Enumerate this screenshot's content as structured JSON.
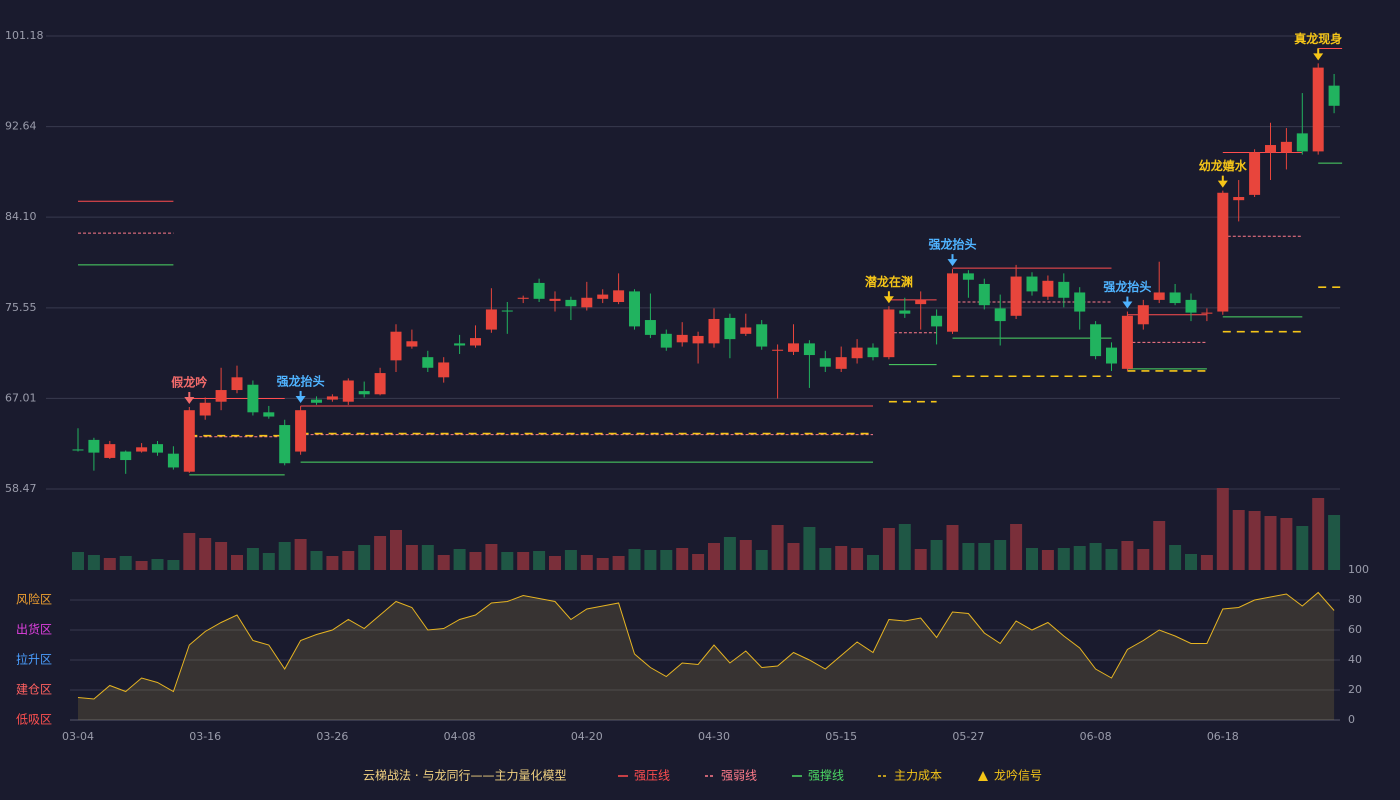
{
  "chart_data": {
    "type": "candlestick",
    "categories": [
      "03-04",
      null,
      null,
      null,
      null,
      null,
      null,
      null,
      "03-16",
      null,
      null,
      null,
      null,
      null,
      null,
      null,
      "03-26",
      null,
      null,
      null,
      null,
      null,
      null,
      null,
      "04-08",
      null,
      null,
      null,
      null,
      null,
      null,
      null,
      "04-20",
      null,
      null,
      null,
      null,
      null,
      null,
      null,
      "04-30",
      null,
      null,
      null,
      null,
      null,
      null,
      null,
      "05-15",
      null,
      null,
      null,
      null,
      null,
      null,
      null,
      "05-27",
      null,
      null,
      null,
      null,
      null,
      null,
      null,
      "06-08",
      null,
      null,
      null,
      null,
      null,
      null,
      null,
      "06-18",
      null,
      null,
      null,
      null,
      null,
      null,
      null
    ],
    "open": [
      62.2,
      63.1,
      61.4,
      62.0,
      62.0,
      62.7,
      61.8,
      60.1,
      65.4,
      66.7,
      67.8,
      68.3,
      65.7,
      64.5,
      62.0,
      66.9,
      66.9,
      66.7,
      67.7,
      67.4,
      70.6,
      71.9,
      70.9,
      69.0,
      72.2,
      72.0,
      73.5,
      75.3,
      76.4,
      77.9,
      76.2,
      76.3,
      75.6,
      76.4,
      76.1,
      77.1,
      74.4,
      73.1,
      72.3,
      72.2,
      72.2,
      74.6,
      73.1,
      74.0,
      71.5,
      71.4,
      72.2,
      70.8,
      69.8,
      70.8,
      71.8,
      70.9,
      75.3,
      75.9,
      74.8,
      73.3,
      78.8,
      77.8,
      75.5,
      74.8,
      78.5,
      76.6,
      78.0,
      77.0,
      74.0,
      71.8,
      69.8,
      74.0,
      76.3,
      77.0,
      76.3,
      75.0,
      75.2,
      85.7,
      86.2,
      90.2,
      90.2,
      92.0,
      90.3,
      96.5
    ],
    "high": [
      64.2,
      63.3,
      63.0,
      62.1,
      62.8,
      63.0,
      62.5,
      66.2,
      67.1,
      69.9,
      70.1,
      68.7,
      66.3,
      65.0,
      66.3,
      67.2,
      67.4,
      68.9,
      68.6,
      69.9,
      74.0,
      73.5,
      71.5,
      70.9,
      73.0,
      73.9,
      77.4,
      76.1,
      76.7,
      78.3,
      77.1,
      76.6,
      78.0,
      77.3,
      78.8,
      77.3,
      76.9,
      73.5,
      74.2,
      73.3,
      75.5,
      75.0,
      75.0,
      74.4,
      72.1,
      74.0,
      72.5,
      71.5,
      71.9,
      72.6,
      72.2,
      75.7,
      76.5,
      77.1,
      75.4,
      79.2,
      79.1,
      78.3,
      76.8,
      79.6,
      78.9,
      78.6,
      78.8,
      77.5,
      74.3,
      72.3,
      75.2,
      76.3,
      79.9,
      77.8,
      76.9,
      75.5,
      86.6,
      87.6,
      90.5,
      93.0,
      92.5,
      95.8,
      98.6,
      97.6
    ],
    "low": [
      62.0,
      60.2,
      61.3,
      59.9,
      61.9,
      61.6,
      60.3,
      60.0,
      65.0,
      65.9,
      67.5,
      65.4,
      65.1,
      60.7,
      61.7,
      66.4,
      66.7,
      66.4,
      67.1,
      67.3,
      69.5,
      71.7,
      69.5,
      68.5,
      71.2,
      71.8,
      73.2,
      73.1,
      76.0,
      76.1,
      75.2,
      74.4,
      75.3,
      76.0,
      75.9,
      73.5,
      72.7,
      71.5,
      71.9,
      70.3,
      71.8,
      70.8,
      72.9,
      71.6,
      67.0,
      71.1,
      68.0,
      69.5,
      69.5,
      70.3,
      70.6,
      70.7,
      74.6,
      73.5,
      72.1,
      73.1,
      76.5,
      75.4,
      72.0,
      74.5,
      76.7,
      76.3,
      75.6,
      73.5,
      70.7,
      69.6,
      69.6,
      73.5,
      76.0,
      75.8,
      74.3,
      74.3,
      74.9,
      83.7,
      86.0,
      87.6,
      88.6,
      90.0,
      90.0,
      93.9
    ],
    "close": [
      62.1,
      61.9,
      62.7,
      61.2,
      62.4,
      61.9,
      60.5,
      65.9,
      66.6,
      67.8,
      69.0,
      65.7,
      65.3,
      60.9,
      65.9,
      66.6,
      67.2,
      68.7,
      67.4,
      69.4,
      73.3,
      72.4,
      69.9,
      70.4,
      72.0,
      72.7,
      75.4,
      75.2,
      76.5,
      76.4,
      76.4,
      75.7,
      76.5,
      76.8,
      77.2,
      73.8,
      73.0,
      71.8,
      73.0,
      72.9,
      74.5,
      72.6,
      73.7,
      71.9,
      71.6,
      72.2,
      71.1,
      70.0,
      70.9,
      71.8,
      70.9,
      75.4,
      75.0,
      76.3,
      73.8,
      78.8,
      78.2,
      75.8,
      74.3,
      78.5,
      77.1,
      78.1,
      76.5,
      75.2,
      71.0,
      70.3,
      74.8,
      75.8,
      77.0,
      76.0,
      75.1,
      75.1,
      86.4,
      86.0,
      90.2,
      90.9,
      91.2,
      90.3,
      98.2,
      94.6
    ],
    "volume": [
      18,
      15,
      12,
      14,
      9,
      11,
      10,
      37,
      32,
      28,
      15,
      22,
      17,
      28,
      31,
      19,
      14,
      19,
      25,
      34,
      40,
      25,
      25,
      15,
      21,
      18,
      26,
      18,
      18,
      19,
      14,
      20,
      15,
      12,
      14,
      21,
      20,
      20,
      22,
      16,
      27,
      33,
      30,
      20,
      45,
      27,
      43,
      22,
      24,
      22,
      15,
      42,
      46,
      21,
      30,
      45,
      27,
      27,
      30,
      46,
      22,
      20,
      22,
      24,
      27,
      21,
      29,
      21,
      49,
      25,
      16,
      15,
      82,
      60,
      59,
      54,
      52,
      44,
      72,
      55
    ],
    "up_color": "#e8453c",
    "down_color": "#21b35f",
    "volume_up_color": "#7a2f3a",
    "volume_down_color": "#1f5745",
    "grid_color": "#383a4e",
    "ylim": [
      58.47,
      101.18
    ],
    "yticks": [
      58.47,
      67.01,
      75.55,
      {
        "value": 84.1,
        "label": "84.10"
      },
      92.64,
      101.18
    ],
    "level_lines": [
      {
        "name": "强压线",
        "color": "#ff4d4f",
        "style": "solid",
        "segments": [
          {
            "from": 0,
            "to": 6,
            "value": 85.6
          },
          {
            "from": 7,
            "to": 13,
            "value": 67.0
          },
          {
            "from": 14,
            "to": 50,
            "value": 66.3
          },
          {
            "from": 51,
            "to": 54,
            "value": 76.3
          },
          {
            "from": 55,
            "to": 65,
            "value": 79.3
          },
          {
            "from": 66,
            "to": 71,
            "value": 74.9
          },
          {
            "from": 72,
            "to": 77,
            "value": 90.2
          },
          {
            "from": 78,
            "to": 79,
            "value": 100.0
          }
        ]
      },
      {
        "name": "强弱线",
        "color": "#ff7b8a",
        "style": "dashed",
        "segments": [
          {
            "from": 0,
            "to": 6,
            "value": 82.6
          },
          {
            "from": 7,
            "to": 13,
            "value": 63.4
          },
          {
            "from": 14,
            "to": 50,
            "value": 63.6
          },
          {
            "from": 51,
            "to": 54,
            "value": 73.2
          },
          {
            "from": 55,
            "to": 65,
            "value": 76.1
          },
          {
            "from": 66,
            "to": 71,
            "value": 72.3
          },
          {
            "from": 72,
            "to": 77,
            "value": 82.3
          }
        ]
      },
      {
        "name": "强撑线",
        "color": "#4cd964",
        "style": "solid",
        "segments": [
          {
            "from": 0,
            "to": 6,
            "value": 79.6
          },
          {
            "from": 7,
            "to": 13,
            "value": 59.8
          },
          {
            "from": 14,
            "to": 50,
            "value": 61.0
          },
          {
            "from": 51,
            "to": 54,
            "value": 70.2
          },
          {
            "from": 55,
            "to": 65,
            "value": 72.7
          },
          {
            "from": 66,
            "to": 71,
            "value": 69.8
          },
          {
            "from": 72,
            "to": 77,
            "value": 74.7
          },
          {
            "from": 78,
            "to": 79,
            "value": 89.2
          }
        ]
      },
      {
        "name": "主力成本",
        "color": "#f5c518",
        "style": "dashed",
        "segments": [
          {
            "from": 7,
            "to": 13,
            "value": 63.5
          },
          {
            "from": 14,
            "to": 50,
            "value": 63.7
          },
          {
            "from": 51,
            "to": 54,
            "value": 66.7
          },
          {
            "from": 55,
            "to": 65,
            "value": 69.1
          },
          {
            "from": 66,
            "to": 71,
            "value": 69.6
          },
          {
            "from": 72,
            "to": 77,
            "value": 73.3
          },
          {
            "from": 78,
            "to": 79,
            "value": 77.5
          }
        ]
      }
    ],
    "signals": [
      {
        "index": 7,
        "label": "假龙吟",
        "color": "#f26b6b"
      },
      {
        "index": 14,
        "label": "强龙抬头",
        "color": "#4fb3ff"
      },
      {
        "index": 51,
        "label": "潜龙在渊",
        "color": "#f5c518"
      },
      {
        "index": 55,
        "label": "强龙抬头",
        "color": "#4fb3ff"
      },
      {
        "index": 66,
        "label": "强龙抬头",
        "color": "#4fb3ff"
      },
      {
        "index": 72,
        "label": "幼龙嬉水",
        "color": "#f5c518"
      },
      {
        "index": 78,
        "label": "真龙现身",
        "color": "#f5c518"
      }
    ],
    "oscillator": {
      "values": [
        15,
        14,
        23,
        19,
        28,
        25,
        19,
        50,
        59,
        65,
        70,
        53,
        50,
        34,
        53,
        57,
        60,
        67,
        61,
        70,
        79,
        75,
        60,
        61,
        67,
        70,
        78,
        79,
        83,
        81,
        79,
        67,
        74,
        76,
        78,
        44,
        35,
        29,
        38,
        37,
        50,
        38,
        46,
        35,
        36,
        45,
        40,
        34,
        43,
        52,
        45,
        67,
        66,
        68,
        55,
        72,
        71,
        58,
        51,
        66,
        60,
        65,
        56,
        48,
        34,
        28,
        47,
        53,
        60,
        56,
        51,
        51,
        74,
        75,
        80,
        82,
        84,
        76,
        85,
        73
      ],
      "color": "#e6b422",
      "ylim": [
        0,
        100
      ],
      "yticks": [
        0,
        20,
        40,
        60,
        80,
        100
      ],
      "ytick_colors": [
        "#ff4d4f",
        "#f0b030",
        "#4a9eff",
        "#e040e0",
        "#f0b030",
        "#4cd964"
      ],
      "zones": [
        {
          "value": 80,
          "label": "风险区",
          "color": "#f0a030"
        },
        {
          "value": 60,
          "label": "出货区",
          "color": "#e040e0"
        },
        {
          "value": 40,
          "label": "拉升区",
          "color": "#4a9eff"
        },
        {
          "value": 20,
          "label": "建仓区",
          "color": "#ff6060"
        },
        {
          "value": 0,
          "label": "低吸区",
          "color": "#ff5050"
        }
      ]
    },
    "legend_title": "云梯战法 · 与龙同行——主力量化模型",
    "legend_title_color": "#f0d080",
    "signal_legend": {
      "name": "龙吟信号",
      "color": "#f5c518"
    }
  }
}
